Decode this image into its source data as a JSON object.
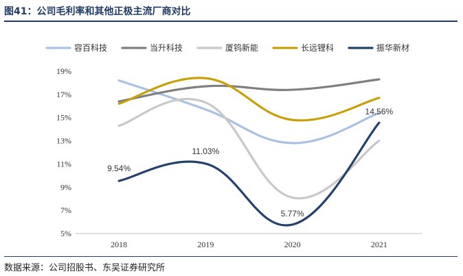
{
  "figure": {
    "title": "图41：公司毛利率和其他正极主流厂商对比",
    "source": "数据来源：公司招股书、东吴证券研究所"
  },
  "chart_data": {
    "type": "line",
    "categories": [
      "2018",
      "2019",
      "2020",
      "2021"
    ],
    "ylim": [
      0.05,
      0.19
    ],
    "yticks": [
      0.05,
      0.07,
      0.09,
      0.11,
      0.13,
      0.15,
      0.17,
      0.19
    ],
    "ytick_labels": [
      "5%",
      "7%",
      "9%",
      "11%",
      "13%",
      "15%",
      "17%",
      "19%"
    ],
    "legend_position": "top",
    "grid": false,
    "smooth": true,
    "series": [
      {
        "name": "容百科技",
        "color": "#a9c1e2",
        "values": [
          0.182,
          0.157,
          0.128,
          0.154
        ]
      },
      {
        "name": "当升科技",
        "color": "#7f7f7f",
        "values": [
          0.164,
          0.177,
          0.174,
          0.183
        ]
      },
      {
        "name": "厦钨新能",
        "color": "#c8c8c8",
        "values": [
          0.143,
          0.163,
          0.081,
          0.13
        ]
      },
      {
        "name": "长远锂科",
        "color": "#c9a00a",
        "values": [
          0.162,
          0.184,
          0.148,
          0.167
        ]
      },
      {
        "name": "振华新材",
        "color": "#24406e",
        "values": [
          0.0954,
          0.1103,
          0.0577,
          0.1456
        ],
        "data_labels": [
          "9.54%",
          "11.03%",
          "5.77%",
          "14.56%"
        ]
      }
    ]
  }
}
